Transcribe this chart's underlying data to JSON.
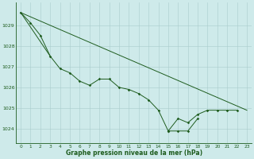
{
  "bg_color": "#ceeaea",
  "line_color": "#1e5c1e",
  "grid_color": "#aacccc",
  "xlabel": "Graphe pression niveau de la mer (hPa)",
  "xlabel_color": "#1e5c1e",
  "ylim": [
    1023.3,
    1030.1
  ],
  "xlim": [
    -0.5,
    23.5
  ],
  "yticks": [
    1024,
    1025,
    1026,
    1027,
    1028,
    1029
  ],
  "xticks": [
    0,
    1,
    2,
    3,
    4,
    5,
    6,
    7,
    8,
    9,
    10,
    11,
    12,
    13,
    14,
    15,
    16,
    17,
    18,
    19,
    20,
    21,
    22,
    23
  ],
  "line1_x": [
    0,
    1,
    2,
    3,
    4,
    5,
    6,
    7,
    8,
    9,
    10,
    11,
    12,
    13,
    14,
    15,
    16,
    17,
    18
  ],
  "line1_y": [
    1029.6,
    1029.1,
    1028.5,
    1027.5,
    1026.9,
    1026.7,
    1026.3,
    1026.1,
    1026.4,
    1026.4,
    1026.0,
    1025.9,
    1025.7,
    1025.4,
    1024.9,
    1023.9,
    1023.9,
    1023.9,
    1024.5
  ],
  "line2_x": [
    15,
    16,
    17,
    18,
    19,
    20,
    21,
    22
  ],
  "line2_y": [
    1023.9,
    1024.5,
    1024.3,
    1024.7,
    1024.9,
    1024.9,
    1024.9,
    1024.9
  ],
  "line3_x": [
    0,
    3
  ],
  "line3_y": [
    1029.6,
    1027.5
  ],
  "line4_x": [
    0,
    23
  ],
  "line4_y": [
    1029.6,
    1024.9
  ],
  "tick_fontsize": 4.2,
  "xlabel_fontsize": 5.5
}
